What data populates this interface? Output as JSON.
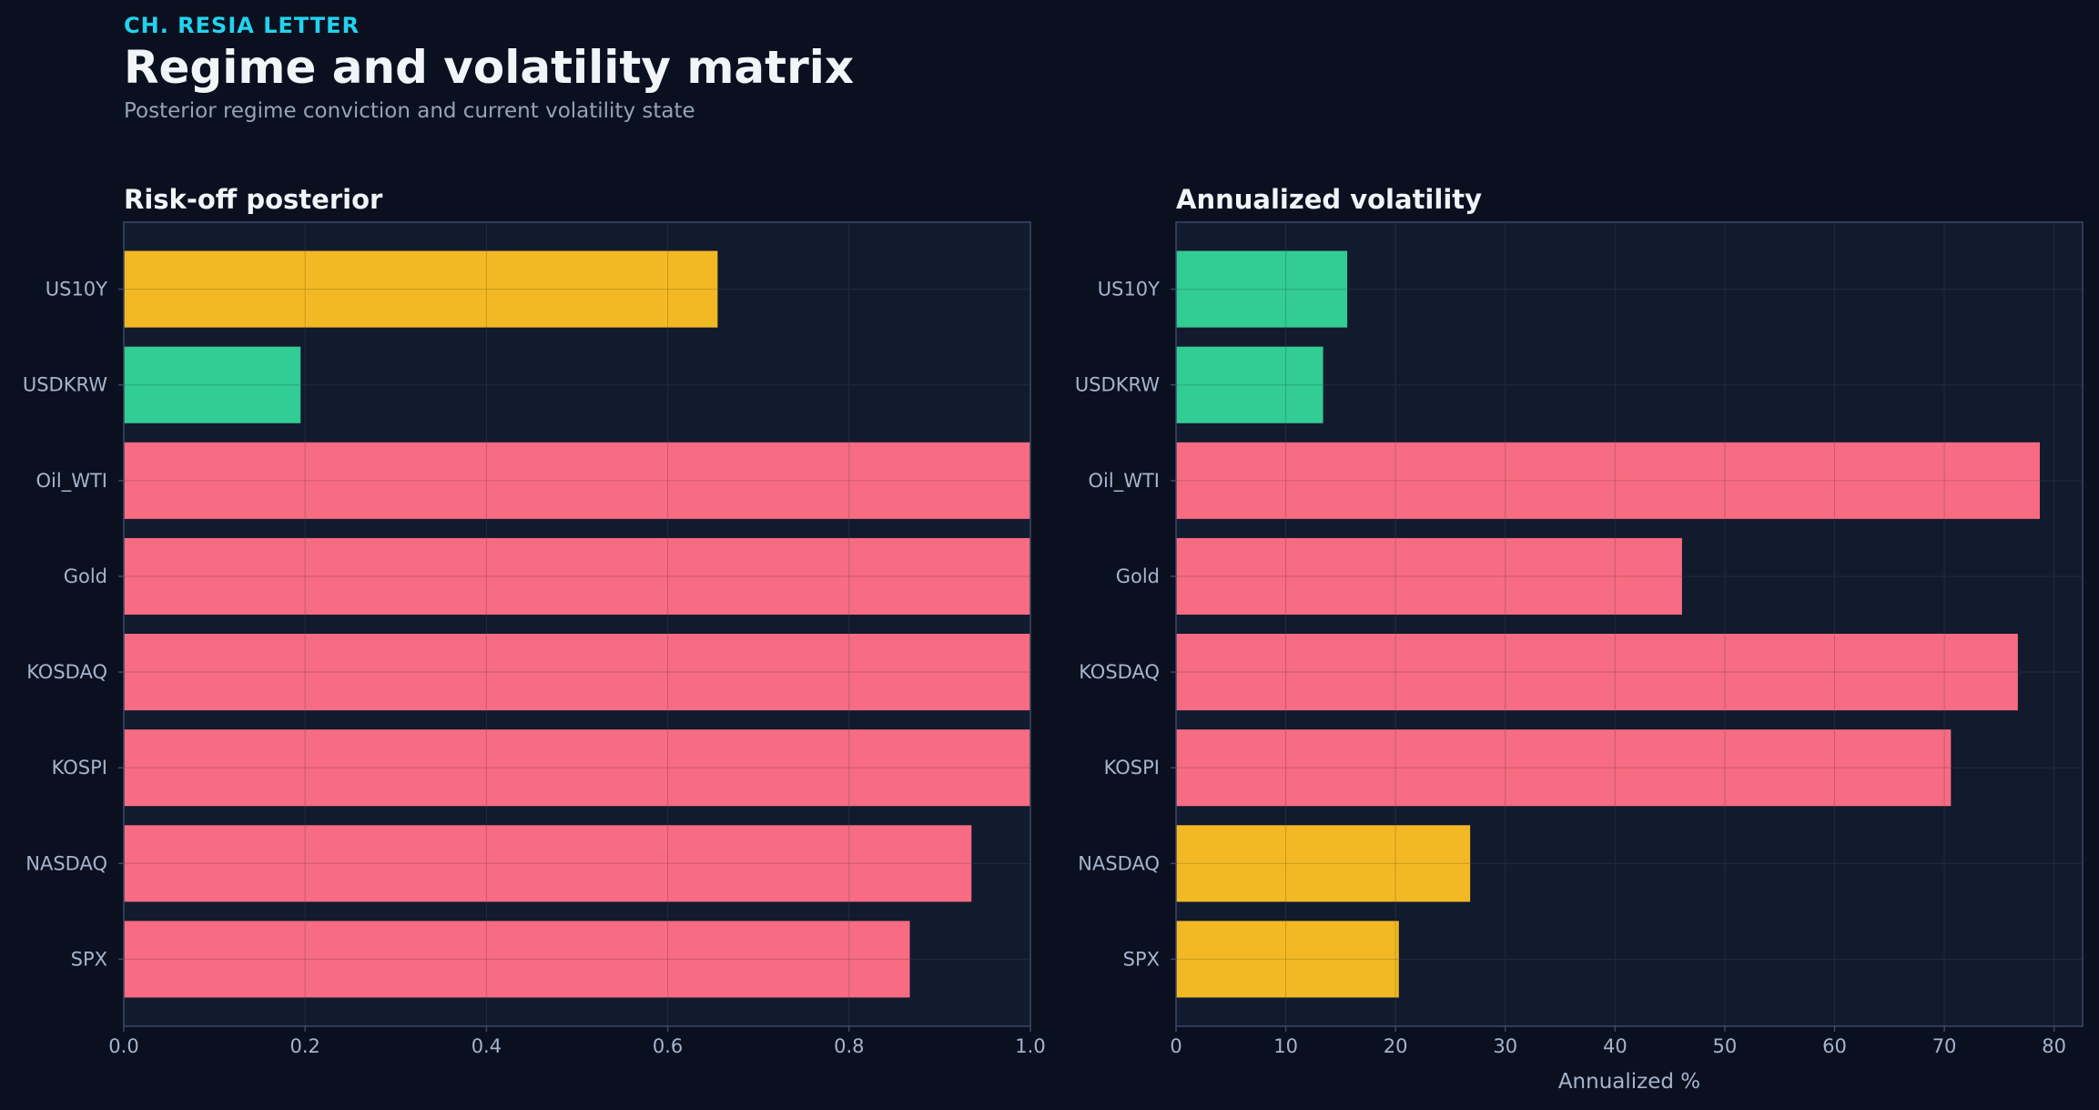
{
  "header": {
    "kicker": "CH. RESIA LETTER",
    "title": "Regime and volatility matrix",
    "subtitle": "Posterior regime conviction and current volatility state"
  },
  "colors": {
    "background": "#0b1020",
    "panel": "#121a2e",
    "grid": "#2a3550",
    "axis": "#3a4766",
    "risk_off": "#ff7085",
    "calm": "#34d399",
    "neutral": "#fbbf24"
  },
  "chart_data": [
    {
      "type": "bar",
      "orientation": "horizontal",
      "title": "Risk-off posterior",
      "xlabel": "",
      "ylabel": "",
      "categories": [
        "US10Y",
        "USDKRW",
        "Oil_WTI",
        "Gold",
        "KOSDAQ",
        "KOSPI",
        "NASDAQ",
        "SPX"
      ],
      "values": [
        0.655,
        0.195,
        1.0,
        1.0,
        1.0,
        1.0,
        0.935,
        0.867
      ],
      "bar_colors": [
        "#fbbf24",
        "#34d399",
        "#ff7085",
        "#ff7085",
        "#ff7085",
        "#ff7085",
        "#ff7085",
        "#ff7085"
      ],
      "xlim": [
        0,
        1.0
      ],
      "xticks": [
        0,
        0.2,
        0.4,
        0.6,
        0.8,
        1.0
      ],
      "xtick_labels": [
        "0.0",
        "0.2",
        "0.4",
        "0.6",
        "0.8",
        "1.0"
      ],
      "grid": true
    },
    {
      "type": "bar",
      "orientation": "horizontal",
      "title": "Annualized volatility",
      "xlabel": "Annualized %",
      "ylabel": "",
      "categories": [
        "US10Y",
        "USDKRW",
        "Oil_WTI",
        "Gold",
        "KOSDAQ",
        "KOSPI",
        "NASDAQ",
        "SPX"
      ],
      "values": [
        15.6,
        13.4,
        78.7,
        46.1,
        76.7,
        70.6,
        26.8,
        20.3
      ],
      "bar_colors": [
        "#34d399",
        "#34d399",
        "#ff7085",
        "#ff7085",
        "#ff7085",
        "#ff7085",
        "#fbbf24",
        "#fbbf24"
      ],
      "xlim": [
        0,
        82.6
      ],
      "xticks": [
        0,
        10,
        20,
        30,
        40,
        50,
        60,
        70,
        80
      ],
      "xtick_labels": [
        "0",
        "10",
        "20",
        "30",
        "40",
        "50",
        "60",
        "70",
        "80"
      ],
      "grid": true
    }
  ]
}
